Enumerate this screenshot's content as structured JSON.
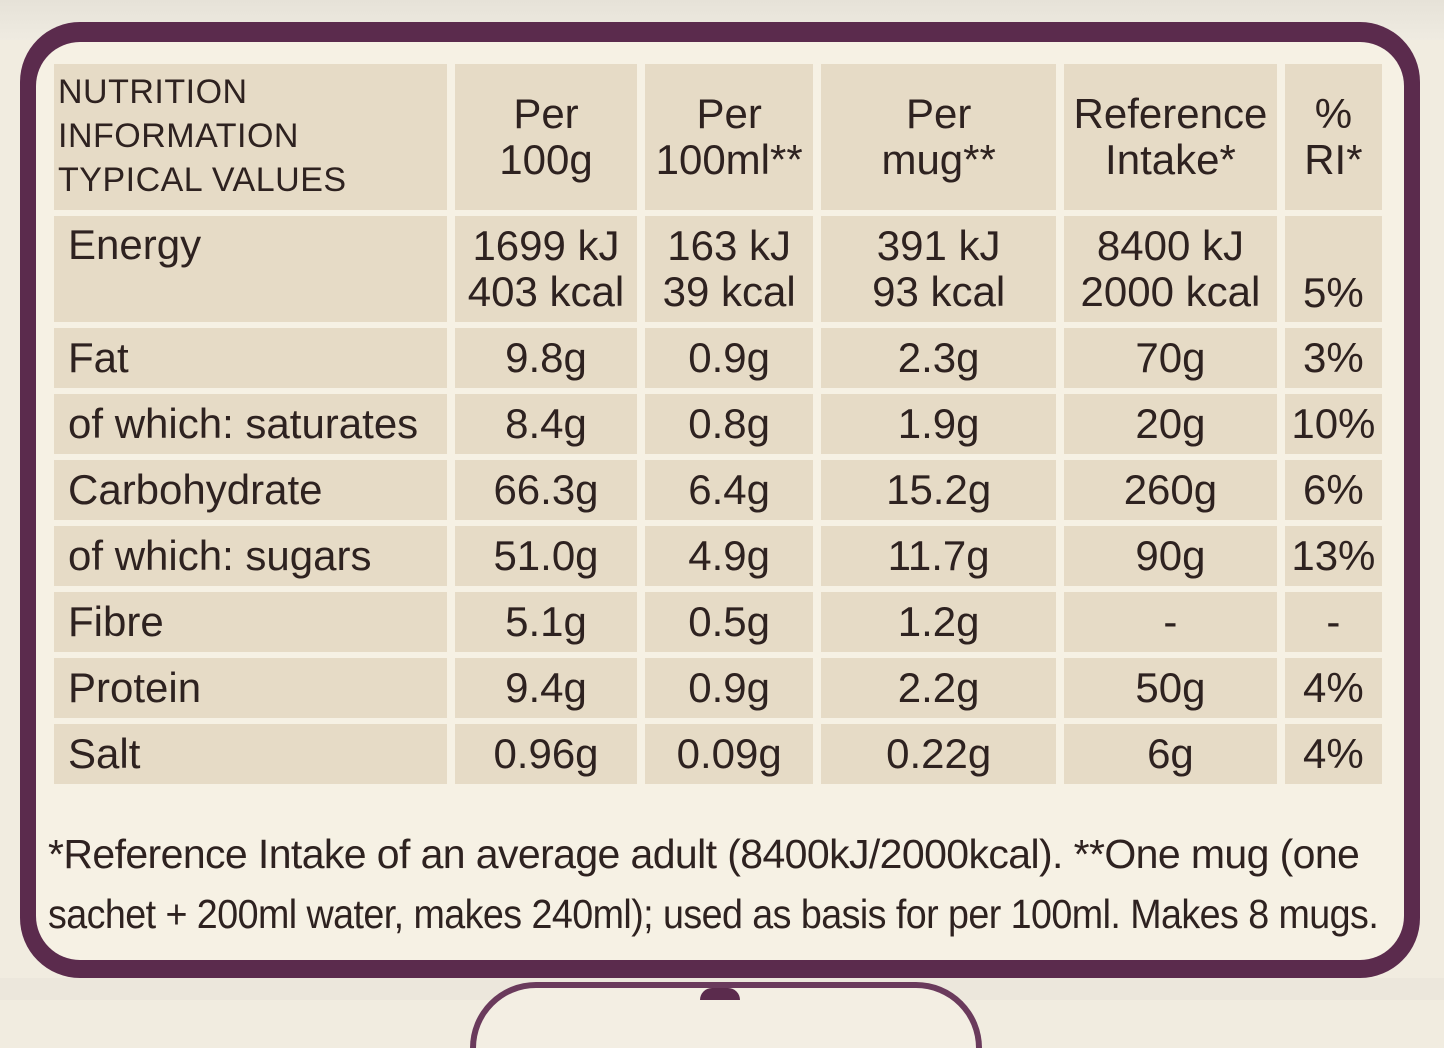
{
  "table": {
    "title_lines": [
      "NUTRITION",
      "INFORMATION",
      "TYPICAL VALUES"
    ],
    "columns": [
      {
        "lines": [
          "Per",
          "100g"
        ]
      },
      {
        "lines": [
          "Per",
          "100ml**"
        ]
      },
      {
        "lines": [
          "Per",
          "mug**"
        ]
      },
      {
        "lines": [
          "Reference",
          "Intake*"
        ]
      },
      {
        "lines": [
          "%",
          "RI*"
        ]
      }
    ],
    "energy": {
      "label": "Energy",
      "per_100g": [
        "1699 kJ",
        "403 kcal"
      ],
      "per_100ml": [
        "163 kJ",
        "39 kcal"
      ],
      "per_mug": [
        "391 kJ",
        "93 kcal"
      ],
      "reference_intake": [
        "8400 kJ",
        "2000 kcal"
      ],
      "ri_percent": "5%"
    },
    "rows": [
      {
        "label": "Fat",
        "per_100g": "9.8g",
        "per_100ml": "0.9g",
        "per_mug": "2.3g",
        "reference_intake": "70g",
        "ri_percent": "3%"
      },
      {
        "label": "of which: saturates",
        "per_100g": "8.4g",
        "per_100ml": "0.8g",
        "per_mug": "1.9g",
        "reference_intake": "20g",
        "ri_percent": "10%"
      },
      {
        "label": "Carbohydrate",
        "per_100g": "66.3g",
        "per_100ml": "6.4g",
        "per_mug": "15.2g",
        "reference_intake": "260g",
        "ri_percent": "6%"
      },
      {
        "label": "of which: sugars",
        "per_100g": "51.0g",
        "per_100ml": "4.9g",
        "per_mug": "11.7g",
        "reference_intake": "90g",
        "ri_percent": "13%"
      },
      {
        "label": "Fibre",
        "per_100g": "5.1g",
        "per_100ml": "0.5g",
        "per_mug": "1.2g",
        "reference_intake": "-",
        "ri_percent": "-"
      },
      {
        "label": "Protein",
        "per_100g": "9.4g",
        "per_100ml": "0.9g",
        "per_mug": "2.2g",
        "reference_intake": "50g",
        "ri_percent": "4%"
      },
      {
        "label": "Salt",
        "per_100g": "0.96g",
        "per_100ml": "0.09g",
        "per_mug": "0.22g",
        "reference_intake": "6g",
        "ri_percent": "4%"
      }
    ]
  },
  "footnote": {
    "lines": [
      "*Reference Intake of an average adult (8400kJ/2000kcal). **One mug (one",
      "sachet + 200ml water, makes 240ml); used as basis for per 100ml. Makes 8 mugs."
    ]
  },
  "colors": {
    "frame": "#5b2b4d",
    "panel": "#f6f1e4",
    "cell": "#e6dbc6",
    "text": "#2e2220"
  }
}
